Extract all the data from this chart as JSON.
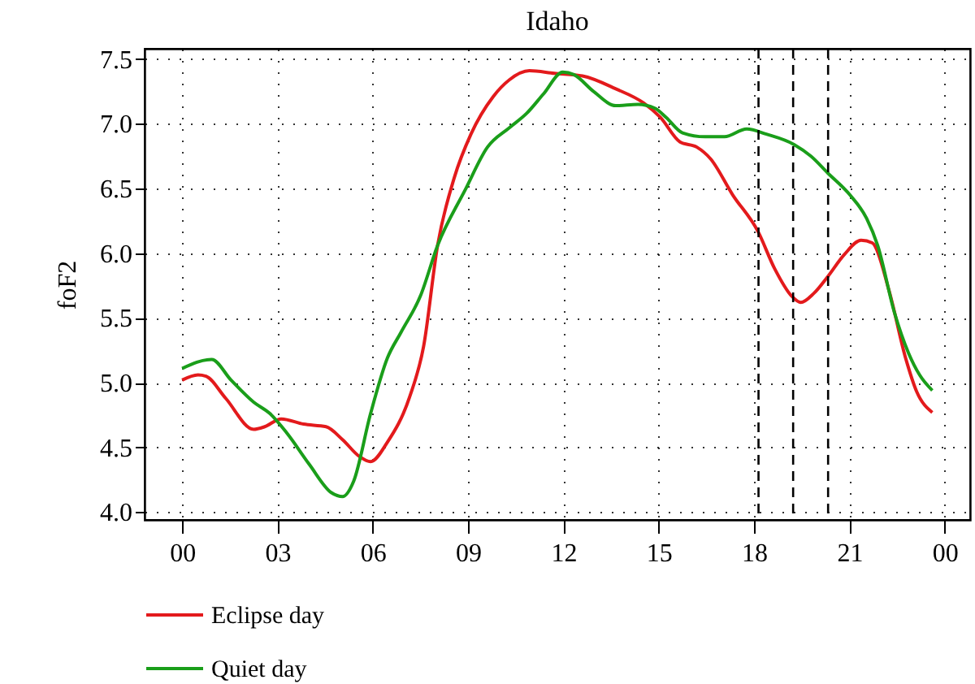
{
  "chart_data": {
    "type": "line",
    "title": "Idaho",
    "ylabel": "foF2",
    "xlim": [
      -1.18,
      24.8
    ],
    "ylim": [
      3.94,
      7.58
    ],
    "xticks": [
      {
        "value": 0,
        "label": "00"
      },
      {
        "value": 3,
        "label": "03"
      },
      {
        "value": 6,
        "label": "06"
      },
      {
        "value": 9,
        "label": "09"
      },
      {
        "value": 12,
        "label": "12"
      },
      {
        "value": 15,
        "label": "15"
      },
      {
        "value": 18,
        "label": "18"
      },
      {
        "value": 21,
        "label": "21"
      },
      {
        "value": 24,
        "label": "00"
      }
    ],
    "yticks": [
      {
        "value": 4,
        "label": "4.0"
      },
      {
        "value": 4.5,
        "label": "4.5"
      },
      {
        "value": 5,
        "label": "5.0"
      },
      {
        "value": 5.5,
        "label": "5.5"
      },
      {
        "value": 6,
        "label": "6.0"
      },
      {
        "value": 6.5,
        "label": "6.5"
      },
      {
        "value": 7,
        "label": "7.0"
      },
      {
        "value": 7.5,
        "label": "7.5"
      }
    ],
    "grid": true,
    "legend": "bottom",
    "line_style": "solid",
    "marker": "none",
    "series": [
      {
        "name": "Eclipse day",
        "color": "#e31a1c",
        "x": [
          0,
          0.5,
          0.75,
          1.37,
          2.25,
          2.6,
          3.12,
          3.82,
          4.53,
          5.05,
          5.58,
          5.93,
          6.46,
          7.16,
          7.6,
          8.04,
          8.56,
          9.09,
          9.79,
          10.3,
          10.93,
          11.72,
          12.6,
          13.65,
          14.53,
          15.05,
          15.67,
          16.2,
          16.63,
          17.33,
          18.12,
          18.65,
          19.18,
          19.47,
          19.88,
          20.32,
          20.84,
          21.37,
          21.72,
          22.25,
          22.77,
          23.12,
          23.61
        ],
        "values": [
          5.02,
          5.06,
          5.05,
          4.88,
          4.64,
          4.66,
          4.72,
          4.68,
          4.66,
          4.56,
          4.43,
          4.39,
          4.54,
          4.89,
          5.28,
          6.06,
          6.58,
          6.92,
          7.21,
          7.34,
          7.41,
          7.39,
          7.37,
          7.27,
          7.16,
          7.05,
          6.86,
          6.82,
          6.73,
          6.45,
          6.17,
          5.88,
          5.67,
          5.62,
          5.69,
          5.82,
          5.99,
          6.1,
          6.08,
          5.71,
          5.19,
          4.93,
          4.77
        ]
      },
      {
        "name": "Quiet day",
        "color": "#1a9e1a",
        "x": [
          0,
          0.93,
          1.54,
          2.25,
          2.77,
          3.3,
          4,
          4.7,
          5.05,
          5.4,
          5.93,
          6.46,
          6.89,
          7.5,
          8.04,
          8.91,
          9.61,
          10.3,
          10.84,
          11.37,
          11.98,
          12.33,
          12.95,
          13.65,
          14.35,
          14.88,
          15.23,
          15.75,
          16.46,
          17.07,
          17.77,
          18.39,
          19.26,
          19.79,
          20.32,
          21.02,
          21.54,
          21.89,
          22.42,
          22.86,
          23.21,
          23.61
        ],
        "values": [
          5.11,
          5.18,
          5.02,
          4.85,
          4.76,
          4.61,
          4.37,
          4.15,
          4.12,
          4.24,
          4.76,
          5.19,
          5.39,
          5.67,
          6.06,
          6.49,
          6.82,
          6.97,
          7.08,
          7.23,
          7.4,
          7.38,
          7.25,
          7.14,
          7.15,
          7.12,
          7.05,
          6.93,
          6.9,
          6.9,
          6.96,
          6.92,
          6.84,
          6.75,
          6.62,
          6.45,
          6.27,
          6.06,
          5.54,
          5.23,
          5.06,
          4.94
        ]
      }
    ],
    "ref_lines": [
      {
        "axis": "x",
        "value": 18.14,
        "color": "#000000",
        "line_style": "dashed"
      },
      {
        "axis": "x",
        "value": 19.23,
        "color": "#000000",
        "line_style": "dashed"
      },
      {
        "axis": "x",
        "value": 20.33,
        "color": "#000000",
        "line_style": "dashed"
      }
    ]
  }
}
